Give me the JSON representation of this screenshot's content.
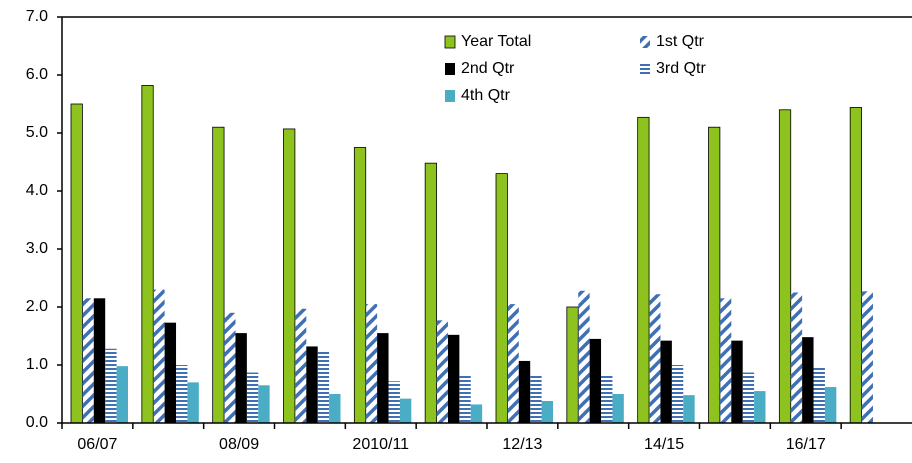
{
  "chart_data": {
    "type": "bar",
    "categories": [
      "06/07",
      null,
      "08/09",
      null,
      "2010/11",
      null,
      "12/13",
      null,
      "14/15",
      null,
      "16/17",
      null
    ],
    "series": [
      {
        "name": "Year Total",
        "color": "#8dc21f",
        "pattern": "solid",
        "values": [
          5.5,
          5.82,
          5.1,
          5.07,
          4.75,
          4.48,
          4.3,
          2.0,
          5.27,
          5.1,
          5.4,
          5.44
        ]
      },
      {
        "name": "1st Qtr",
        "color": "#3f6fb5",
        "pattern": "diagonal",
        "values": [
          2.15,
          2.3,
          1.9,
          1.97,
          2.05,
          1.77,
          2.05,
          2.28,
          2.22,
          2.15,
          2.25,
          2.27
        ]
      },
      {
        "name": "2nd Qtr",
        "color": "#000000",
        "pattern": "solid",
        "values": [
          2.15,
          1.73,
          1.55,
          1.32,
          1.55,
          1.52,
          1.07,
          1.45,
          1.42,
          1.42,
          1.48,
          null
        ]
      },
      {
        "name": "3rd Qtr",
        "color": "#3f6fb5",
        "pattern": "horizontal",
        "values": [
          1.28,
          1.0,
          0.87,
          1.25,
          0.72,
          0.83,
          0.83,
          0.83,
          1.0,
          0.87,
          0.97,
          null
        ]
      },
      {
        "name": "4th Qtr",
        "color": "#4bacc6",
        "pattern": "solid",
        "values": [
          0.98,
          0.7,
          0.65,
          0.5,
          0.42,
          0.32,
          0.38,
          0.5,
          0.48,
          0.55,
          0.62,
          null
        ]
      }
    ],
    "ylim": [
      0,
      7
    ],
    "yticks": [
      {
        "value": 0,
        "label": "0.0"
      },
      {
        "value": 1,
        "label": "1.0"
      },
      {
        "value": 2,
        "label": "2.0"
      },
      {
        "value": 3,
        "label": "3.0"
      },
      {
        "value": 4,
        "label": "4.0"
      },
      {
        "value": 5,
        "label": "5.0"
      },
      {
        "value": 6,
        "label": "6.0"
      },
      {
        "value": 7,
        "label": "7.0"
      }
    ],
    "grid": false,
    "legend": "top"
  }
}
